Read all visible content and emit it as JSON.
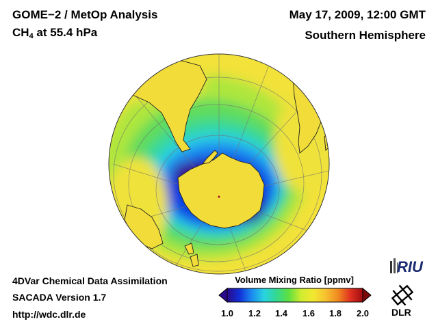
{
  "header": {
    "title_left": "GOME−2 / MetOp Analysis",
    "species_main": "CH",
    "species_sub": "4",
    "species_rest": " at 55.4 hPa",
    "date": "May 17, 2009, 12:00 GMT",
    "region": "Southern Hemisphere"
  },
  "footer": {
    "line1": "4DVar Chemical Data Assimilation",
    "line2": "SACADA Version 1.7",
    "line3": "http://wdc.dlr.de"
  },
  "colorbar": {
    "title": "Volume Mixing Ratio [ppmv]",
    "ticks": [
      "1.0",
      "1.2",
      "1.4",
      "1.6",
      "1.8",
      "2.0"
    ],
    "range": [
      1.0,
      2.0
    ],
    "colors": [
      "#2a0a8a",
      "#1030d8",
      "#1c8cf0",
      "#28d4e0",
      "#34d890",
      "#60e040",
      "#d0ec30",
      "#f2e830",
      "#f7c030",
      "#f08a20",
      "#e03020",
      "#a00c10"
    ]
  },
  "logos": {
    "riu": "RIU",
    "dlr": "DLR"
  },
  "icons": {
    "riu": "riu-logo-icon",
    "dlr": "dlr-logo-icon"
  }
}
